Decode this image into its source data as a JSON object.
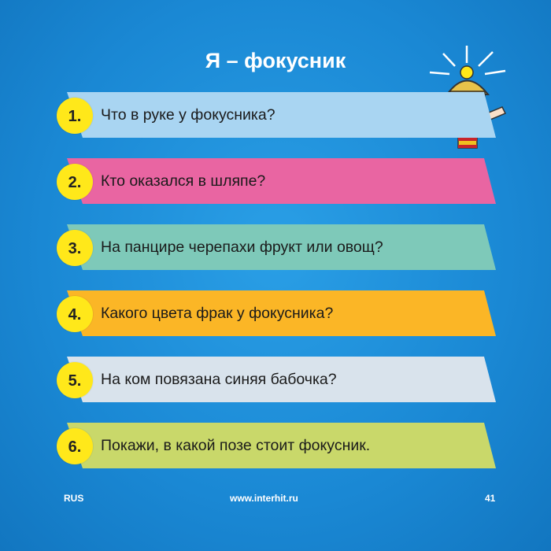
{
  "title": "Я – фокусник",
  "background_color": "#1a88d4",
  "number_badge_color": "#ffe81a",
  "questions": [
    {
      "number": "1.",
      "text": "Что в руке у фокусника?",
      "color": "#a9d5f2"
    },
    {
      "number": "2.",
      "text": "Кто оказался в шляпе?",
      "color": "#e965a2"
    },
    {
      "number": "3.",
      "text": "На панцире черепахи фрукт или овощ?",
      "color": "#7ec9b9"
    },
    {
      "number": "4.",
      "text": "Какого цвета фрак у фокусника?",
      "color": "#fbb626"
    },
    {
      "number": "5.",
      "text": "На ком повязана синяя бабочка?",
      "color": "#d9e3ec"
    },
    {
      "number": "6.",
      "text": "Покажи, в какой позе стоит фокусник.",
      "color": "#c9d86a"
    }
  ],
  "footer": {
    "language": "RUS",
    "website": "www.interhit.ru",
    "page_number": "41"
  },
  "mascot_icon": "thinking-boy-with-lightbulb-icon"
}
